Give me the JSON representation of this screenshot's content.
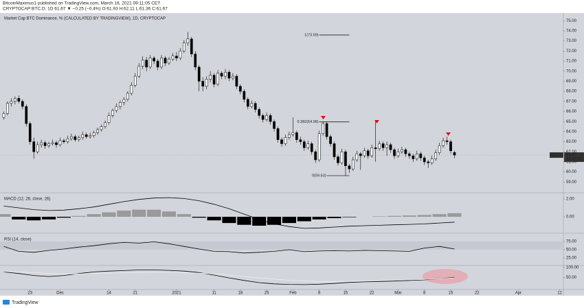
{
  "header": {
    "author_line": "BitcoinMaximus1 published on TradingView.com, March 16, 2021 09:11:05 CET",
    "symbol_line": "CRYPTOCAP:BTC.D, 1D 61.67 ▼ −0.25 (−0.4%) O:61.93 H:62.11 L:61.36 C:61.67"
  },
  "logo": "TradingView",
  "chart_data": [
    {
      "type": "candlestick",
      "title": "Market Cap BTC Dominance, % (CALCULATED BY TRADINGVIEW), 1D, CRYPTOCAP",
      "up_color": "#ffffff",
      "down_color": "#000000",
      "last_label": "BTC.D",
      "countdown": "15:48:57",
      "xlim": [
        -1,
        149
      ],
      "xticks": [
        {
          "value": 7,
          "label": "23"
        },
        {
          "value": 15,
          "label": "Dec"
        },
        {
          "value": 28,
          "label": "14"
        },
        {
          "value": 35,
          "label": "21"
        },
        {
          "value": 46,
          "label": "2021"
        },
        {
          "value": 56,
          "label": "11"
        },
        {
          "value": 63,
          "label": "18"
        },
        {
          "value": 70,
          "label": "25"
        },
        {
          "value": 77,
          "label": "Feb"
        },
        {
          "value": 84,
          "label": "8"
        },
        {
          "value": 91,
          "label": "15"
        },
        {
          "value": 98,
          "label": "22"
        },
        {
          "value": 105,
          "label": "Mar"
        },
        {
          "value": 112,
          "label": "8"
        },
        {
          "value": 119,
          "label": "15"
        },
        {
          "value": 126,
          "label": "22"
        },
        {
          "value": 137,
          "label": "Apr"
        },
        {
          "value": 148,
          "label": "12"
        }
      ],
      "ylim": [
        58,
        75.7
      ],
      "yticks": [
        {
          "value": 59,
          "label": "59.00"
        },
        {
          "value": 60,
          "label": "60.00"
        },
        {
          "value": 61,
          "label": "61.00"
        },
        {
          "value": 62,
          "label": "62.00"
        },
        {
          "value": 63,
          "label": "63.00"
        },
        {
          "value": 64,
          "label": "64.00"
        },
        {
          "value": 65,
          "label": "65.00"
        },
        {
          "value": 66,
          "label": "66.00"
        },
        {
          "value": 67,
          "label": "67.00"
        },
        {
          "value": 68,
          "label": "68.00"
        },
        {
          "value": 69,
          "label": "69.00"
        },
        {
          "value": 70,
          "label": "70.00"
        },
        {
          "value": 71,
          "label": "71.00"
        },
        {
          "value": 72,
          "label": "72.00"
        },
        {
          "value": 73,
          "label": "73.00"
        },
        {
          "value": 74,
          "label": "74.00"
        },
        {
          "value": 75,
          "label": "75.00"
        }
      ],
      "annotations": [
        {
          "label": "1(73.59)",
          "value": 73.59
        },
        {
          "label": "0.382(64.96)",
          "value": 64.96
        },
        {
          "label": "0(59.63)",
          "value": 59.63
        }
      ],
      "candles": [
        [
          65.4,
          66.0,
          65.2,
          65.8
        ],
        [
          65.8,
          67.0,
          65.6,
          66.8
        ],
        [
          66.8,
          67.3,
          66.5,
          67.0
        ],
        [
          67.0,
          67.5,
          66.7,
          67.3
        ],
        [
          67.3,
          67.6,
          66.8,
          67.0
        ],
        [
          67.0,
          67.2,
          66.2,
          66.5
        ],
        [
          66.5,
          66.7,
          64.5,
          64.8
        ],
        [
          64.8,
          65.0,
          62.7,
          63.0
        ],
        [
          63.0,
          63.4,
          61.3,
          62.0
        ],
        [
          62.0,
          63.0,
          61.8,
          62.7
        ],
        [
          62.7,
          63.2,
          62.4,
          62.9
        ],
        [
          62.9,
          63.1,
          62.3,
          62.6
        ],
        [
          62.6,
          63.0,
          62.4,
          62.8
        ],
        [
          62.8,
          63.2,
          62.6,
          62.9
        ],
        [
          62.9,
          63.1,
          62.4,
          62.7
        ],
        [
          62.7,
          63.4,
          62.5,
          63.1
        ],
        [
          63.1,
          63.3,
          62.8,
          63.0
        ],
        [
          63.0,
          63.6,
          62.8,
          63.3
        ],
        [
          63.3,
          63.8,
          63.1,
          63.5
        ],
        [
          63.5,
          63.7,
          63.0,
          63.2
        ],
        [
          63.2,
          63.6,
          63.0,
          63.4
        ],
        [
          63.4,
          64.0,
          63.2,
          63.7
        ],
        [
          63.7,
          63.9,
          63.3,
          63.5
        ],
        [
          63.5,
          63.9,
          63.3,
          63.6
        ],
        [
          63.6,
          64.1,
          63.4,
          63.9
        ],
        [
          63.9,
          64.4,
          63.7,
          64.2
        ],
        [
          64.2,
          64.7,
          64.0,
          64.5
        ],
        [
          64.5,
          65.1,
          64.3,
          64.9
        ],
        [
          64.9,
          65.9,
          64.7,
          65.6
        ],
        [
          65.6,
          66.3,
          65.4,
          66.1
        ],
        [
          66.1,
          66.8,
          65.9,
          66.5
        ],
        [
          66.5,
          67.1,
          66.2,
          66.9
        ],
        [
          66.9,
          67.4,
          66.6,
          67.2
        ],
        [
          67.2,
          68.0,
          67.0,
          67.8
        ],
        [
          67.8,
          68.9,
          67.6,
          68.6
        ],
        [
          68.6,
          69.8,
          68.4,
          69.5
        ],
        [
          69.5,
          70.8,
          69.3,
          70.5
        ],
        [
          70.5,
          71.5,
          70.2,
          71.1
        ],
        [
          71.1,
          71.4,
          70.0,
          70.4
        ],
        [
          70.4,
          71.6,
          70.2,
          71.3
        ],
        [
          71.3,
          71.5,
          70.7,
          71.0
        ],
        [
          71.0,
          71.2,
          70.1,
          70.4
        ],
        [
          70.4,
          71.6,
          70.2,
          71.3
        ],
        [
          71.3,
          71.5,
          70.5,
          70.8
        ],
        [
          70.8,
          71.4,
          70.6,
          71.2
        ],
        [
          71.2,
          71.8,
          71.0,
          71.5
        ],
        [
          71.5,
          71.9,
          71.0,
          71.3
        ],
        [
          71.3,
          72.3,
          71.1,
          72.0
        ],
        [
          72.0,
          73.1,
          71.8,
          72.8
        ],
        [
          72.8,
          73.9,
          72.5,
          73.2
        ],
        [
          73.2,
          73.4,
          71.4,
          71.7
        ],
        [
          71.7,
          72.0,
          70.1,
          70.4
        ],
        [
          70.4,
          70.6,
          68.0,
          69.0
        ],
        [
          69.0,
          69.4,
          68.0,
          68.5
        ],
        [
          68.5,
          69.5,
          68.2,
          69.2
        ],
        [
          69.2,
          70.0,
          68.9,
          69.6
        ],
        [
          69.6,
          69.8,
          68.4,
          68.7
        ],
        [
          68.7,
          70.1,
          68.5,
          69.8
        ],
        [
          69.8,
          70.0,
          69.2,
          69.5
        ],
        [
          69.5,
          70.2,
          69.2,
          69.9
        ],
        [
          69.9,
          70.1,
          69.0,
          69.3
        ],
        [
          69.3,
          69.8,
          69.1,
          69.5
        ],
        [
          69.5,
          69.7,
          68.2,
          68.5
        ],
        [
          68.5,
          68.7,
          67.7,
          68.0
        ],
        [
          68.0,
          68.2,
          66.9,
          67.2
        ],
        [
          67.2,
          67.4,
          66.2,
          66.5
        ],
        [
          66.5,
          67.1,
          66.3,
          66.8
        ],
        [
          66.8,
          67.0,
          65.9,
          66.2
        ],
        [
          66.2,
          66.4,
          65.3,
          65.6
        ],
        [
          65.6,
          65.8,
          64.9,
          65.2
        ],
        [
          65.2,
          65.9,
          65.0,
          65.6
        ],
        [
          65.6,
          65.8,
          64.7,
          65.0
        ],
        [
          65.0,
          65.2,
          64.0,
          64.3
        ],
        [
          64.3,
          64.5,
          62.9,
          63.2
        ],
        [
          63.2,
          63.4,
          62.5,
          62.8
        ],
        [
          62.8,
          63.7,
          62.6,
          63.4
        ],
        [
          63.4,
          64.0,
          63.2,
          63.7
        ],
        [
          63.7,
          65.4,
          63.5,
          63.9
        ],
        [
          63.9,
          64.1,
          62.9,
          63.2
        ],
        [
          63.2,
          63.5,
          62.7,
          63.0
        ],
        [
          63.0,
          63.2,
          62.1,
          62.4
        ],
        [
          62.4,
          63.1,
          62.2,
          62.8
        ],
        [
          62.8,
          63.0,
          61.7,
          62.0
        ],
        [
          62.0,
          62.2,
          60.9,
          61.2
        ],
        [
          61.2,
          64.1,
          61.0,
          63.8
        ],
        [
          63.8,
          65.0,
          63.6,
          64.8
        ],
        [
          64.8,
          65.0,
          63.2,
          63.5
        ],
        [
          63.5,
          63.7,
          62.5,
          62.8
        ],
        [
          62.8,
          63.0,
          61.2,
          61.5
        ],
        [
          61.5,
          61.7,
          60.6,
          60.9
        ],
        [
          60.9,
          62.3,
          60.7,
          62.0
        ],
        [
          62.0,
          62.2,
          59.63,
          60.6
        ],
        [
          60.6,
          60.8,
          59.9,
          60.3
        ],
        [
          60.3,
          61.5,
          60.1,
          61.2
        ],
        [
          61.2,
          62.1,
          61.0,
          61.8
        ],
        [
          61.8,
          62.0,
          60.2,
          61.6
        ],
        [
          61.6,
          62.4,
          61.4,
          62.1
        ],
        [
          62.1,
          62.3,
          61.3,
          61.6
        ],
        [
          61.6,
          62.7,
          61.4,
          62.4
        ],
        [
          62.4,
          65.0,
          61.0,
          62.3
        ],
        [
          62.3,
          63.1,
          62.1,
          62.8
        ],
        [
          62.8,
          63.0,
          62.1,
          62.4
        ],
        [
          62.4,
          63.0,
          61.6,
          62.7
        ],
        [
          62.7,
          62.9,
          61.9,
          62.2
        ],
        [
          62.2,
          62.4,
          61.3,
          61.6
        ],
        [
          61.6,
          62.3,
          61.4,
          62.0
        ],
        [
          62.0,
          62.5,
          61.8,
          62.2
        ],
        [
          62.2,
          62.4,
          61.5,
          61.8
        ],
        [
          61.8,
          62.0,
          61.3,
          61.6
        ],
        [
          61.6,
          61.8,
          61.0,
          61.3
        ],
        [
          61.3,
          62.1,
          61.1,
          61.8
        ],
        [
          61.8,
          62.0,
          61.1,
          61.4
        ],
        [
          61.4,
          61.6,
          60.7,
          61.0
        ],
        [
          61.0,
          61.2,
          60.4,
          60.9
        ],
        [
          60.9,
          61.6,
          60.7,
          61.3
        ],
        [
          61.3,
          62.2,
          61.1,
          61.9
        ],
        [
          61.9,
          62.9,
          61.7,
          62.6
        ],
        [
          62.6,
          63.4,
          62.4,
          63.1
        ],
        [
          63.1,
          63.5,
          62.7,
          63.0
        ],
        [
          63.0,
          63.2,
          61.8,
          62.1
        ],
        [
          61.93,
          62.11,
          61.36,
          61.67
        ]
      ]
    },
    {
      "type": "macd",
      "title": "MACD (12, 26, close, 26)",
      "line_color": "#000000",
      "pos_color": "#9a9a9a",
      "neg_color": "#000000",
      "x": [
        0,
        4,
        8,
        12,
        16,
        20,
        24,
        28,
        32,
        36,
        40,
        44,
        48,
        52,
        56,
        60,
        64,
        68,
        72,
        76,
        80,
        84,
        88,
        92,
        96,
        100,
        104,
        108,
        112,
        116,
        120
      ],
      "histogram": [
        0.3,
        -0.3,
        -0.4,
        -0.3,
        -0.1,
        0.1,
        0.3,
        0.5,
        0.7,
        0.8,
        0.8,
        0.6,
        0.3,
        -0.1,
        -0.4,
        -0.7,
        -0.9,
        -1.0,
        -0.9,
        -0.7,
        -0.5,
        -0.3,
        -0.15,
        -0.05,
        0.0,
        0.05,
        0.1,
        0.15,
        0.2,
        0.3,
        0.4
      ],
      "line": [
        1.2,
        1.0,
        0.8,
        0.7,
        0.75,
        0.9,
        1.1,
        1.4,
        1.7,
        1.95,
        2.1,
        2.15,
        2.05,
        1.8,
        1.4,
        0.9,
        0.3,
        -0.3,
        -0.8,
        -1.1,
        -1.3,
        -1.25,
        -1.15,
        -1.05,
        -1.0,
        -0.95,
        -0.9,
        -0.85,
        -0.8,
        -0.7,
        -0.6
      ],
      "ylim": [
        -1.69,
        2.54
      ],
      "yticks": [
        {
          "value": 0,
          "label": "0.00"
        },
        {
          "value": 2,
          "label": "2.00"
        }
      ]
    },
    {
      "type": "line",
      "title": "RSI (14, close)",
      "x": [
        0,
        4,
        8,
        12,
        16,
        20,
        24,
        28,
        32,
        36,
        40,
        44,
        48,
        52,
        56,
        60,
        64,
        68,
        72,
        76,
        80,
        84,
        88,
        92,
        96,
        100,
        104,
        108,
        112,
        116,
        120
      ],
      "series": [
        {
          "color": "#000000",
          "values": [
            60,
            45,
            42,
            48,
            52,
            58,
            62,
            68,
            72,
            70,
            74,
            68,
            60,
            52,
            45,
            44,
            40,
            42,
            45,
            50,
            44,
            46,
            47,
            46,
            48,
            47,
            46,
            45,
            55,
            60,
            52
          ]
        }
      ],
      "ylim": [
        6.25,
        95.8
      ],
      "yticks": [
        {
          "value": 25,
          "label": "25.00"
        },
        {
          "value": 50,
          "label": "50.00"
        },
        {
          "value": 75,
          "label": "75.00"
        }
      ]
    },
    {
      "type": "line",
      "x": [
        0,
        4,
        8,
        12,
        16,
        20,
        24,
        28,
        32,
        36,
        40,
        44,
        48,
        52,
        56,
        60,
        64,
        68,
        72,
        76,
        80,
        84,
        88,
        92,
        96,
        100,
        104,
        108,
        112,
        116,
        120
      ],
      "series": [
        {
          "color": "#000000",
          "values": [
            78,
            70,
            60,
            55,
            60,
            70,
            78,
            82,
            85,
            88,
            88,
            86,
            82,
            75,
            62,
            48,
            35,
            24,
            18,
            15,
            14,
            16,
            20,
            25,
            28,
            30,
            32,
            35,
            38,
            45,
            50
          ]
        },
        {
          "color": "#eeeeee",
          "values": [
            80,
            78,
            74,
            70,
            68,
            68,
            70,
            72,
            74,
            75,
            76,
            76,
            75,
            72,
            68,
            62,
            55,
            48,
            42,
            36,
            32,
            30,
            30,
            31,
            32,
            34,
            36,
            38,
            40,
            44,
            48
          ]
        }
      ],
      "ylim": [
        -7,
        103.6
      ],
      "yticks": [
        {
          "value": 50,
          "label": "50.00"
        },
        {
          "value": 100,
          "label": "100.00"
        }
      ]
    }
  ]
}
